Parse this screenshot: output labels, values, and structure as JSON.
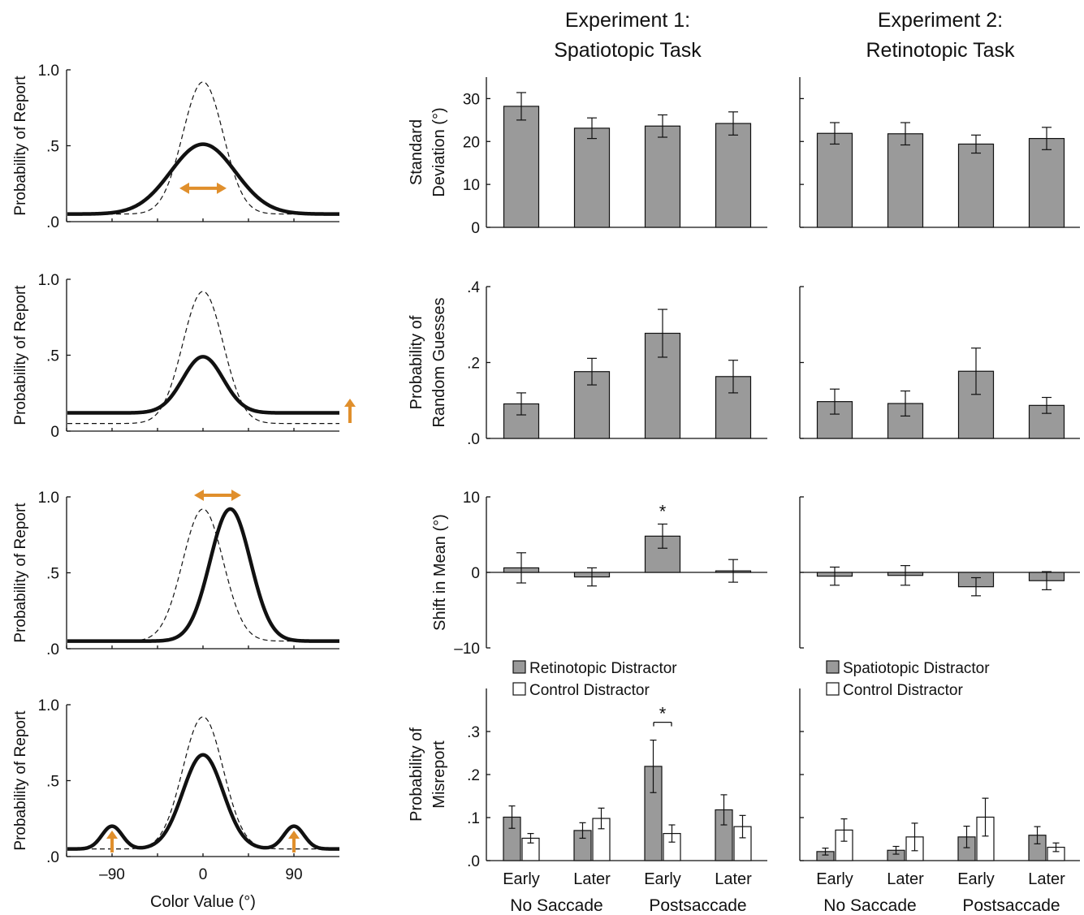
{
  "titles": {
    "exp1_line1": "Experiment 1:",
    "exp1_line2": "Spatiotopic Task",
    "exp2_line1": "Experiment 2:",
    "exp2_line2": "Retinotopic Task"
  },
  "colors": {
    "accent_arrow": "#E08F2C",
    "bar_fill": "#9a9a9a",
    "bar_fill_control": "#ffffff",
    "ink": "#111111"
  },
  "left_panels": {
    "ylabel": "Probability of Report",
    "xlabel": "Color Value (°)",
    "xtick_labels": [
      "–90",
      "0",
      "90"
    ]
  },
  "chart_data": [
    {
      "type": "line",
      "panel": "curve-1",
      "ylabel": "Probability of Report",
      "yticks": [
        "1.0",
        ".5",
        ".0"
      ],
      "xlim": [
        -180,
        180
      ],
      "ylim": [
        0,
        1
      ],
      "series": [
        {
          "style": "dashed",
          "curve": {
            "baseline": 0.05,
            "peak": 0.92,
            "mean": 0,
            "sd": 20
          }
        },
        {
          "style": "solid",
          "curve": {
            "baseline": 0.05,
            "peak": 0.51,
            "mean": 0,
            "sd": 32
          }
        }
      ],
      "annotation": "double-arrow-horizontal"
    },
    {
      "type": "line",
      "panel": "curve-2",
      "ylabel": "Probability of Report",
      "yticks": [
        "1.0",
        ".5",
        "0"
      ],
      "xlim": [
        -180,
        180
      ],
      "ylim": [
        0,
        1
      ],
      "series": [
        {
          "style": "dashed",
          "curve": {
            "baseline": 0.05,
            "peak": 0.92,
            "mean": 0,
            "sd": 20
          }
        },
        {
          "style": "solid",
          "curve": {
            "baseline": 0.12,
            "peak": 0.49,
            "mean": 0,
            "sd": 20
          }
        }
      ],
      "annotation": "up-arrow-right"
    },
    {
      "type": "line",
      "panel": "curve-3",
      "ylabel": "Probability of Report",
      "yticks": [
        "1.0",
        ".5",
        ".0"
      ],
      "xlim": [
        -180,
        180
      ],
      "ylim": [
        0,
        1
      ],
      "series": [
        {
          "style": "dashed",
          "curve": {
            "baseline": 0.05,
            "peak": 0.92,
            "mean": 0,
            "sd": 20
          }
        },
        {
          "style": "solid",
          "curve": {
            "baseline": 0.05,
            "peak": 0.92,
            "mean": 27,
            "sd": 20
          }
        }
      ],
      "annotation": "double-arrow-horizontal-top"
    },
    {
      "type": "line",
      "panel": "curve-4",
      "ylabel": "Probability of Report",
      "yticks": [
        "1.0",
        ".5",
        ".0"
      ],
      "xticks": [
        "–90",
        "0",
        "90"
      ],
      "xlabel": "Color Value (°)",
      "xlim": [
        -180,
        180
      ],
      "ylim": [
        0,
        1
      ],
      "series": [
        {
          "style": "dashed",
          "curve": {
            "baseline": 0.05,
            "peak": 0.92,
            "mean": 0,
            "sd": 20
          }
        },
        {
          "style": "solid",
          "curve": {
            "baseline": 0.05,
            "peak": 0.67,
            "mean": 0,
            "sd": 20,
            "side_peaks": {
              "at": [
                -90,
                90
              ],
              "height": 0.2,
              "sd": 10
            }
          }
        }
      ],
      "annotation": "up-arrows-at-side-peaks"
    },
    {
      "type": "bar",
      "panel": "exp1-sd",
      "ylabel": [
        "Standard",
        "Deviation (°)"
      ],
      "ylim": [
        0,
        35
      ],
      "yticks": [
        0,
        10,
        20,
        30
      ],
      "ytick_labels": [
        "0",
        "10",
        "20",
        "30"
      ],
      "categories": [
        "Early",
        "Later",
        "Early",
        "Later"
      ],
      "series": [
        {
          "values": [
            28.2,
            23.1,
            23.6,
            24.2
          ],
          "errors": [
            3.2,
            2.4,
            2.6,
            2.7
          ]
        }
      ]
    },
    {
      "type": "bar",
      "panel": "exp2-sd",
      "ylim": [
        0,
        35
      ],
      "yticks": [
        0,
        10,
        20,
        30
      ],
      "categories": [
        "Early",
        "Later",
        "Early",
        "Later"
      ],
      "series": [
        {
          "values": [
            21.9,
            21.8,
            19.4,
            20.7
          ],
          "errors": [
            2.5,
            2.6,
            2.1,
            2.6
          ]
        }
      ]
    },
    {
      "type": "bar",
      "panel": "exp1-guess",
      "ylabel": [
        "Probability of",
        "Random Guesses"
      ],
      "ylim": [
        0,
        0.4
      ],
      "yticks": [
        0,
        0.2,
        0.4
      ],
      "ytick_labels": [
        ".0",
        ".2",
        ".4"
      ],
      "categories": [
        "Early",
        "Later",
        "Early",
        "Later"
      ],
      "series": [
        {
          "values": [
            0.091,
            0.176,
            0.277,
            0.163
          ],
          "errors": [
            0.029,
            0.035,
            0.063,
            0.043
          ]
        }
      ]
    },
    {
      "type": "bar",
      "panel": "exp2-guess",
      "ylim": [
        0,
        0.4
      ],
      "yticks": [
        0,
        0.2,
        0.4
      ],
      "categories": [
        "Early",
        "Later",
        "Early",
        "Later"
      ],
      "series": [
        {
          "values": [
            0.097,
            0.092,
            0.177,
            0.087
          ],
          "errors": [
            0.033,
            0.033,
            0.061,
            0.021
          ]
        }
      ]
    },
    {
      "type": "bar",
      "panel": "exp1-shift",
      "ylabel": [
        "Shift in Mean (°)"
      ],
      "ylim": [
        -10,
        10
      ],
      "yticks": [
        -10,
        0,
        10
      ],
      "ytick_labels": [
        "–10",
        "0",
        "10"
      ],
      "categories": [
        "Early",
        "Later",
        "Early",
        "Later"
      ],
      "series": [
        {
          "values": [
            0.6,
            -0.6,
            4.8,
            0.2
          ],
          "errors": [
            2.0,
            1.2,
            1.6,
            1.5
          ]
        }
      ],
      "significance": [
        {
          "bar": 2,
          "label": "*"
        }
      ]
    },
    {
      "type": "bar",
      "panel": "exp2-shift",
      "ylim": [
        -10,
        10
      ],
      "yticks": [
        -10,
        0,
        10
      ],
      "categories": [
        "Early",
        "Later",
        "Early",
        "Later"
      ],
      "series": [
        {
          "values": [
            -0.5,
            -0.4,
            -1.9,
            -1.1
          ],
          "errors": [
            1.2,
            1.3,
            1.2,
            1.2
          ]
        }
      ]
    },
    {
      "type": "bar",
      "panel": "exp1-misreport",
      "ylabel": [
        "Probability of",
        "Misreport"
      ],
      "ylim": [
        0,
        0.4
      ],
      "yticks": [
        0,
        0.1,
        0.2,
        0.3
      ],
      "ytick_labels": [
        ".0",
        ".1",
        ".2",
        ".3"
      ],
      "categories": [
        "Early",
        "Later",
        "Early",
        "Later"
      ],
      "groups": [
        "No Saccade",
        "Postsaccade"
      ],
      "series": [
        {
          "name": "Retinotopic Distractor",
          "values": [
            0.101,
            0.07,
            0.219,
            0.118
          ],
          "errors": [
            0.026,
            0.018,
            0.061,
            0.035
          ]
        },
        {
          "name": "Control Distractor",
          "values": [
            0.052,
            0.098,
            0.063,
            0.079
          ],
          "errors": [
            0.011,
            0.024,
            0.02,
            0.026
          ]
        }
      ],
      "legend": "top-left",
      "significance": [
        {
          "bars": [
            2,
            2
          ],
          "label": "*"
        }
      ]
    },
    {
      "type": "bar",
      "panel": "exp2-misreport",
      "ylim": [
        0,
        0.4
      ],
      "yticks": [
        0,
        0.1,
        0.2,
        0.3
      ],
      "categories": [
        "Early",
        "Later",
        "Early",
        "Later"
      ],
      "groups": [
        "No Saccade",
        "Postsaccade"
      ],
      "series": [
        {
          "name": "Spatiotopic Distractor",
          "values": [
            0.021,
            0.024,
            0.055,
            0.059
          ],
          "errors": [
            0.008,
            0.009,
            0.025,
            0.02
          ]
        },
        {
          "name": "Control Distractor",
          "values": [
            0.071,
            0.055,
            0.101,
            0.031
          ],
          "errors": [
            0.026,
            0.032,
            0.044,
            0.01
          ]
        }
      ],
      "legend": "top-left"
    }
  ]
}
